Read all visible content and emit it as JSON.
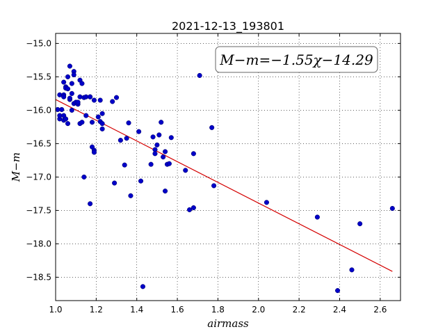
{
  "chart_data": {
    "type": "scatter",
    "title": "2021-12-13_193801",
    "xlabel": "airmass",
    "ylabel": "M−m",
    "xlim": [
      1.0,
      2.7
    ],
    "ylim": [
      -18.85,
      -14.85
    ],
    "y_inverted": true,
    "grid": true,
    "xticks": [
      1.0,
      1.2,
      1.4,
      1.6,
      1.8,
      2.0,
      2.2,
      2.4,
      2.6
    ],
    "xtick_labels": [
      "1.0",
      "1.2",
      "1.4",
      "1.6",
      "1.8",
      "2.0",
      "2.2",
      "2.4",
      "2.6"
    ],
    "yticks": [
      -15.0,
      -15.5,
      -16.0,
      -16.5,
      -17.0,
      -17.5,
      -18.0,
      -18.5
    ],
    "ytick_labels": [
      "−15.0",
      "−15.5",
      "−16.0",
      "−16.5",
      "−17.0",
      "−17.5",
      "−18.0",
      "−18.5"
    ],
    "annotation": "M−m=−1.55χ−14.29",
    "fit": {
      "slope": -1.55,
      "intercept": -14.29,
      "x_range": [
        1.0,
        2.66
      ],
      "color": "#d40000"
    },
    "point_color": "#0000c8",
    "points": [
      [
        1.01,
        -15.99
      ],
      [
        1.02,
        -15.77
      ],
      [
        1.02,
        -16.13
      ],
      [
        1.02,
        -16.08
      ],
      [
        1.03,
        -15.99
      ],
      [
        1.04,
        -15.58
      ],
      [
        1.04,
        -15.77
      ],
      [
        1.04,
        -15.8
      ],
      [
        1.04,
        -16.08
      ],
      [
        1.04,
        -16.15
      ],
      [
        1.05,
        -15.65
      ],
      [
        1.05,
        -15.67
      ],
      [
        1.05,
        -16.13
      ],
      [
        1.06,
        -15.5
      ],
      [
        1.06,
        -15.68
      ],
      [
        1.06,
        -16.2
      ],
      [
        1.07,
        -15.34
      ],
      [
        1.07,
        -15.84
      ],
      [
        1.07,
        -15.82
      ],
      [
        1.08,
        -15.6
      ],
      [
        1.08,
        -15.75
      ],
      [
        1.08,
        -16.0
      ],
      [
        1.09,
        -15.42
      ],
      [
        1.09,
        -15.47
      ],
      [
        1.09,
        -15.9
      ],
      [
        1.1,
        -15.88
      ],
      [
        1.11,
        -15.91
      ],
      [
        1.11,
        -15.88
      ],
      [
        1.12,
        -16.2
      ],
      [
        1.12,
        -15.55
      ],
      [
        1.12,
        -15.8
      ],
      [
        1.13,
        -15.6
      ],
      [
        1.13,
        -16.18
      ],
      [
        1.14,
        -15.81
      ],
      [
        1.14,
        -17.0
      ],
      [
        1.15,
        -15.8
      ],
      [
        1.15,
        -16.08
      ],
      [
        1.17,
        -15.8
      ],
      [
        1.17,
        -17.4
      ],
      [
        1.17,
        -15.8
      ],
      [
        1.18,
        -16.18
      ],
      [
        1.18,
        -16.55
      ],
      [
        1.19,
        -16.6
      ],
      [
        1.19,
        -16.63
      ],
      [
        1.19,
        -15.85
      ],
      [
        1.21,
        -16.1
      ],
      [
        1.22,
        -15.85
      ],
      [
        1.22,
        -16.17
      ],
      [
        1.23,
        -16.05
      ],
      [
        1.23,
        -16.2
      ],
      [
        1.23,
        -16.28
      ],
      [
        1.28,
        -15.87
      ],
      [
        1.29,
        -17.09
      ],
      [
        1.3,
        -15.81
      ],
      [
        1.32,
        -16.45
      ],
      [
        1.34,
        -16.82
      ],
      [
        1.35,
        -16.42
      ],
      [
        1.36,
        -16.19
      ],
      [
        1.37,
        -17.28
      ],
      [
        1.41,
        -16.32
      ],
      [
        1.42,
        -17.06
      ],
      [
        1.43,
        -18.64
      ],
      [
        1.47,
        -16.81
      ],
      [
        1.48,
        -16.4
      ],
      [
        1.49,
        -16.59
      ],
      [
        1.49,
        -16.65
      ],
      [
        1.5,
        -16.52
      ],
      [
        1.51,
        -16.37
      ],
      [
        1.52,
        -16.18
      ],
      [
        1.53,
        -16.7
      ],
      [
        1.54,
        -16.62
      ],
      [
        1.54,
        -17.21
      ],
      [
        1.55,
        -16.81
      ],
      [
        1.56,
        -16.8
      ],
      [
        1.57,
        -16.41
      ],
      [
        1.64,
        -16.9
      ],
      [
        1.66,
        -17.49
      ],
      [
        1.68,
        -16.65
      ],
      [
        1.68,
        -17.46
      ],
      [
        1.71,
        -15.48
      ],
      [
        1.77,
        -16.26
      ],
      [
        1.78,
        -17.13
      ],
      [
        2.04,
        -17.38
      ],
      [
        2.29,
        -17.6
      ],
      [
        2.39,
        -18.7
      ],
      [
        2.46,
        -18.39
      ],
      [
        2.5,
        -17.7
      ],
      [
        2.66,
        -17.47
      ]
    ]
  }
}
